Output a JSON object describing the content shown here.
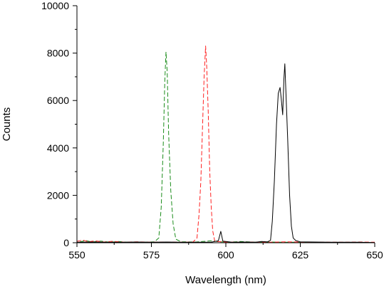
{
  "chart_data": {
    "type": "line",
    "title": "",
    "xlabel": "Wavelength (nm)",
    "ylabel": "Counts",
    "xlim": [
      550,
      650
    ],
    "ylim": [
      0,
      10000
    ],
    "x_ticks": [
      550,
      575,
      600,
      625,
      650
    ],
    "y_ticks": [
      0,
      2000,
      4000,
      6000,
      8000,
      10000
    ],
    "grid": false,
    "legend": "none",
    "series": [
      {
        "color": "#1a8c1a",
        "style": "dashed",
        "points": [
          [
            551,
            40
          ],
          [
            553,
            90
          ],
          [
            555,
            30
          ],
          [
            558,
            70
          ],
          [
            561,
            25
          ],
          [
            564,
            50
          ],
          [
            567,
            20
          ],
          [
            570,
            30
          ],
          [
            573,
            20
          ],
          [
            576,
            40
          ],
          [
            577.5,
            200
          ],
          [
            578.3,
            1500
          ],
          [
            579,
            4200
          ],
          [
            579.5,
            6800
          ],
          [
            579.9,
            8050
          ],
          [
            580.3,
            7200
          ],
          [
            580.8,
            4600
          ],
          [
            581.5,
            2200
          ],
          [
            582.3,
            800
          ],
          [
            583.2,
            150
          ],
          [
            585,
            40
          ],
          [
            590,
            30
          ],
          [
            595,
            80
          ],
          [
            598,
            40
          ],
          [
            602,
            30
          ],
          [
            605,
            50
          ],
          [
            610,
            20
          ],
          [
            615,
            30
          ],
          [
            620,
            20
          ],
          [
            625,
            20
          ],
          [
            630,
            10
          ],
          [
            640,
            10
          ],
          [
            650,
            10
          ]
        ]
      },
      {
        "color": "#ff2020",
        "style": "dashed",
        "points": [
          [
            550,
            60
          ],
          [
            552,
            110
          ],
          [
            554,
            40
          ],
          [
            556,
            80
          ],
          [
            559,
            30
          ],
          [
            562,
            60
          ],
          [
            566,
            20
          ],
          [
            570,
            40
          ],
          [
            575,
            20
          ],
          [
            580,
            30
          ],
          [
            585,
            20
          ],
          [
            589,
            30
          ],
          [
            590.3,
            200
          ],
          [
            591,
            1200
          ],
          [
            591.6,
            2600
          ],
          [
            592.2,
            5000
          ],
          [
            592.7,
            7000
          ],
          [
            593.2,
            8300
          ],
          [
            593.6,
            7400
          ],
          [
            594.1,
            5500
          ],
          [
            594.6,
            3000
          ],
          [
            595.1,
            1500
          ],
          [
            595.6,
            500
          ],
          [
            596.3,
            60
          ],
          [
            600,
            30
          ],
          [
            605,
            20
          ],
          [
            610,
            30
          ],
          [
            615,
            20
          ],
          [
            620,
            40
          ],
          [
            625,
            30
          ],
          [
            630,
            20
          ],
          [
            635,
            25
          ],
          [
            640,
            20
          ],
          [
            645,
            30
          ],
          [
            650,
            20
          ]
        ]
      },
      {
        "color": "#000000",
        "style": "solid",
        "points": [
          [
            550,
            20
          ],
          [
            555,
            30
          ],
          [
            560,
            20
          ],
          [
            565,
            20
          ],
          [
            570,
            30
          ],
          [
            575,
            20
          ],
          [
            580,
            30
          ],
          [
            585,
            20
          ],
          [
            590,
            20
          ],
          [
            595,
            20
          ],
          [
            597.5,
            80
          ],
          [
            598.3,
            480
          ],
          [
            599,
            70
          ],
          [
            602,
            20
          ],
          [
            606,
            30
          ],
          [
            610,
            20
          ],
          [
            612,
            50
          ],
          [
            614,
            40
          ],
          [
            615,
            100
          ],
          [
            615.6,
            900
          ],
          [
            616.3,
            2600
          ],
          [
            617,
            5000
          ],
          [
            617.6,
            6300
          ],
          [
            618.2,
            6550
          ],
          [
            618.6,
            6100
          ],
          [
            619.1,
            5400
          ],
          [
            619.5,
            6900
          ],
          [
            619.8,
            7550
          ],
          [
            620.2,
            6300
          ],
          [
            620.8,
            4300
          ],
          [
            621.4,
            2000
          ],
          [
            622,
            700
          ],
          [
            622.6,
            200
          ],
          [
            623.5,
            90
          ],
          [
            625,
            40
          ],
          [
            630,
            30
          ],
          [
            635,
            20
          ],
          [
            640,
            20
          ],
          [
            645,
            20
          ],
          [
            650,
            10
          ]
        ]
      }
    ]
  }
}
